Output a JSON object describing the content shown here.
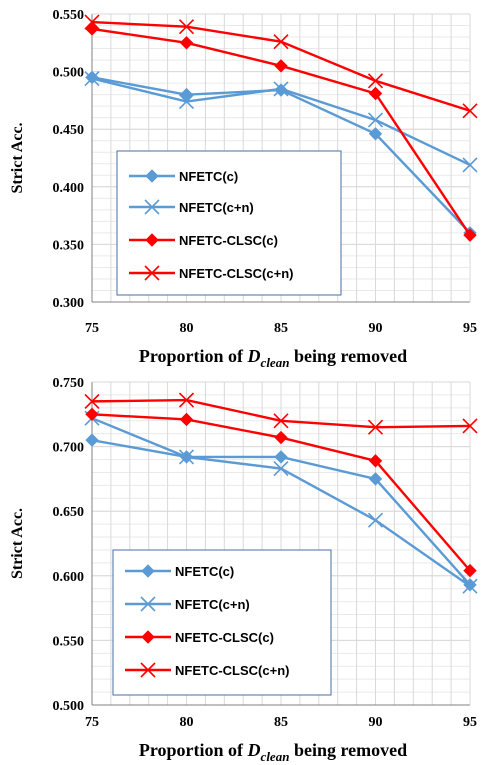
{
  "chart_data": [
    {
      "type": "line",
      "x": [
        75,
        80,
        85,
        90,
        95
      ],
      "ylabel": "Strict Acc.",
      "xlabel_parts": {
        "prefix": "Proportion of ",
        "var": "D",
        "sub": "clean",
        "suffix": " being removed"
      },
      "ylim": [
        0.3,
        0.55
      ],
      "yticks": [
        "0.300",
        "0.350",
        "0.400",
        "0.450",
        "0.500",
        "0.550"
      ],
      "grid": true,
      "legend_position": "lower-left",
      "series": [
        {
          "name": "NFETC(c)",
          "color": "#5b9bd5",
          "marker": "diamond",
          "values": [
            0.495,
            0.48,
            0.484,
            0.446,
            0.36
          ]
        },
        {
          "name": "NFETC(c+n)",
          "color": "#5b9bd5",
          "marker": "x",
          "values": [
            0.494,
            0.474,
            0.485,
            0.458,
            0.419
          ]
        },
        {
          "name": "NFETC-CLSC(c)",
          "color": "#ff0000",
          "marker": "diamond",
          "values": [
            0.537,
            0.525,
            0.505,
            0.481,
            0.358
          ]
        },
        {
          "name": "NFETC-CLSC(c+n)",
          "color": "#ff0000",
          "marker": "x",
          "values": [
            0.543,
            0.539,
            0.526,
            0.492,
            0.466
          ]
        }
      ]
    },
    {
      "type": "line",
      "x": [
        75,
        80,
        85,
        90,
        95
      ],
      "ylabel": "Strict Acc.",
      "xlabel_parts": {
        "prefix": "Proportion of ",
        "var": "D",
        "sub": "clean",
        "suffix": " being removed"
      },
      "ylim": [
        0.5,
        0.75
      ],
      "yticks": [
        "0.500",
        "0.550",
        "0.600",
        "0.650",
        "0.700",
        "0.750"
      ],
      "grid": true,
      "legend_position": "lower-left",
      "series": [
        {
          "name": "NFETC(c)",
          "color": "#5b9bd5",
          "marker": "diamond",
          "values": [
            0.705,
            0.692,
            0.692,
            0.675,
            0.593
          ]
        },
        {
          "name": "NFETC(c+n)",
          "color": "#5b9bd5",
          "marker": "x",
          "values": [
            0.722,
            0.692,
            0.683,
            0.643,
            0.592
          ]
        },
        {
          "name": "NFETC-CLSC(c)",
          "color": "#ff0000",
          "marker": "diamond",
          "values": [
            0.725,
            0.721,
            0.707,
            0.689,
            0.604
          ]
        },
        {
          "name": "NFETC-CLSC(c+n)",
          "color": "#ff0000",
          "marker": "x",
          "values": [
            0.735,
            0.736,
            0.72,
            0.715,
            0.716
          ]
        }
      ]
    }
  ]
}
